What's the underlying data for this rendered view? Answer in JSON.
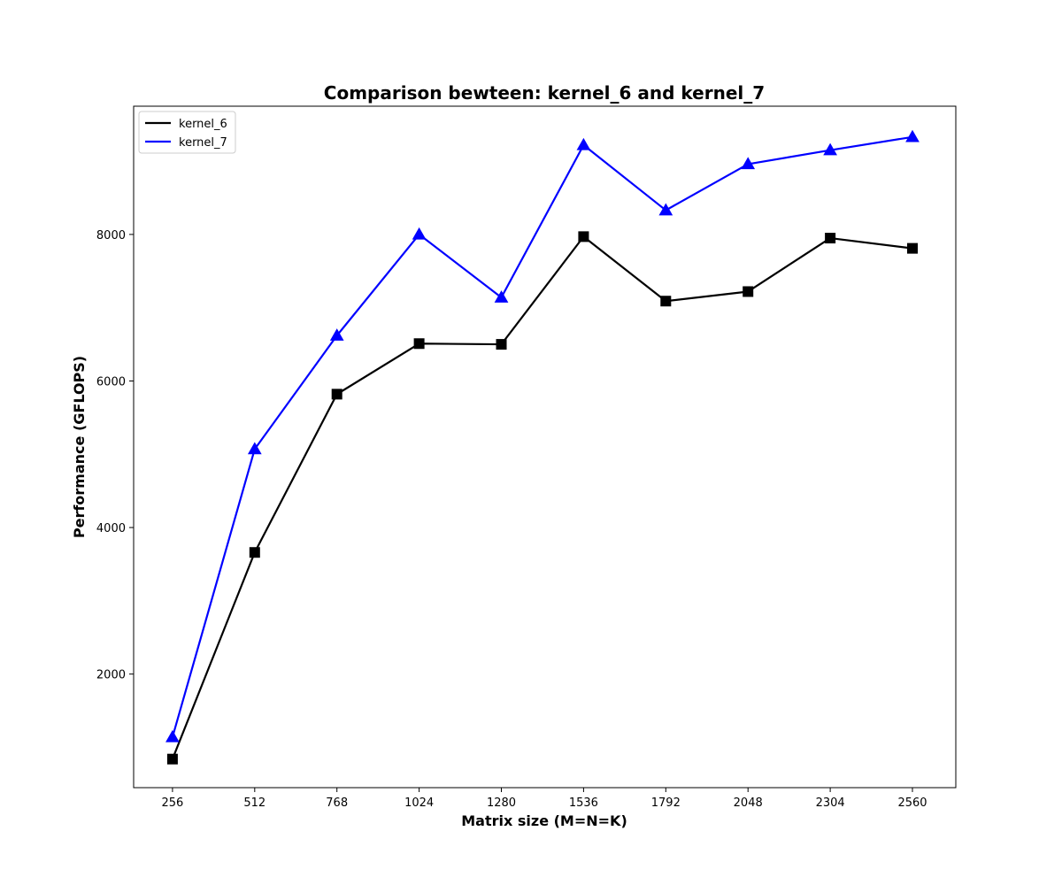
{
  "chart_data": {
    "type": "line",
    "title": "Comparison bewteen: kernel_6 and kernel_7",
    "xlabel": "Matrix size (M=N=K)",
    "ylabel": "Performance (GFLOPS)",
    "x": [
      256,
      512,
      768,
      1024,
      1280,
      1536,
      1792,
      2048,
      2304,
      2560
    ],
    "xticks": [
      "256",
      "512",
      "768",
      "1024",
      "1280",
      "1536",
      "1792",
      "2048",
      "2304",
      "2560"
    ],
    "yticks": [
      2000,
      4000,
      6000,
      8000
    ],
    "xlim": [
      135,
      2695
    ],
    "ylim": [
      450,
      9750
    ],
    "grid": false,
    "legend_position": "top-left",
    "series": [
      {
        "name": "kernel_6",
        "color": "#000000",
        "marker": "square",
        "values": [
          840,
          3660,
          5820,
          6510,
          6500,
          7970,
          7090,
          7220,
          7950,
          7810
        ]
      },
      {
        "name": "kernel_7",
        "color": "#0000ff",
        "marker": "triangle",
        "values": [
          1140,
          5070,
          6620,
          8000,
          7140,
          9220,
          8330,
          8960,
          9150,
          9330
        ]
      }
    ]
  }
}
